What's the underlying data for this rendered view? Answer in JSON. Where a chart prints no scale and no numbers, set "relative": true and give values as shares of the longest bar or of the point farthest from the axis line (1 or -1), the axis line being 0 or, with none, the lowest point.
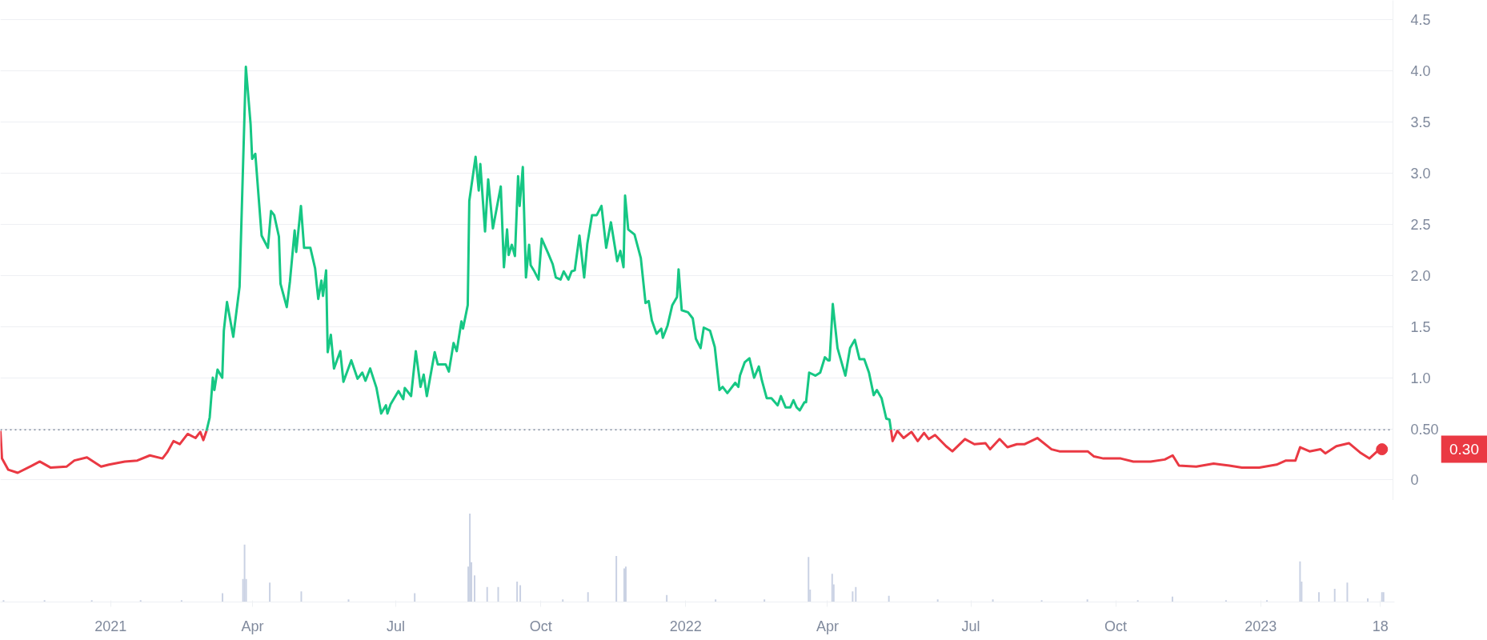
{
  "chart_data": [
    {
      "type": "line",
      "ylim": [
        -0.2,
        4.69
      ],
      "xlim": [
        "2020-10-23",
        "2023-03-27"
      ],
      "yticks": [
        0,
        {
          "value": 0.5,
          "label": "0.50"
        },
        {
          "value": 1,
          "label": "1.0"
        },
        {
          "value": 1.5,
          "label": "1.5"
        },
        {
          "value": 2,
          "label": "2.0"
        },
        {
          "value": 2.5,
          "label": "2.5"
        },
        {
          "value": 3,
          "label": "3.0"
        },
        {
          "value": 3.5,
          "label": "3.5"
        },
        {
          "value": 4,
          "label": "4.0"
        },
        {
          "value": 4.5,
          "label": "4.5"
        }
      ],
      "grid": "y",
      "tick_labels": "y",
      "ref_lines": [
        {
          "axis": "y",
          "value": 0.49,
          "color": "#808a9d",
          "line_style": "dotted"
        }
      ],
      "annotations": [
        "0.30"
      ],
      "series": [
        {
          "color": "#ea3943",
          "x": [
            "2020-10-23",
            "2020-10-24",
            "2020-10-28",
            "2020-11-03",
            "2020-11-12",
            "2020-11-17",
            "2020-11-24",
            "2020-12-04",
            "2020-12-09",
            "2020-12-17",
            "2020-12-26",
            "2020-12-31",
            "2021-01-10",
            "2021-01-18",
            "2021-01-26",
            "2021-02-03",
            "2021-02-06",
            "2021-02-10",
            "2021-02-14",
            "2021-02-19",
            "2021-02-24",
            "2021-02-27",
            "2021-03-01",
            "2021-03-03"
          ],
          "values": [
            0.48,
            0.21,
            0.1,
            0.07,
            0.14,
            0.18,
            0.12,
            0.13,
            0.19,
            0.22,
            0.13,
            0.15,
            0.18,
            0.19,
            0.24,
            0.21,
            0.27,
            0.38,
            0.35,
            0.45,
            0.41,
            0.47,
            0.39,
            0.48
          ]
        },
        {
          "color": "#16c784",
          "x": [
            "2021-03-03",
            "2021-03-05",
            "2021-03-07",
            "2021-03-08",
            "2021-03-10",
            "2021-03-13",
            "2021-03-14",
            "2021-03-16",
            "2021-03-20",
            "2021-03-24",
            "2021-03-28",
            "2021-03-31",
            "2021-04-01",
            "2021-04-03",
            "2021-04-07",
            "2021-04-11",
            "2021-04-13",
            "2021-04-15",
            "2021-04-18",
            "2021-04-19",
            "2021-04-23",
            "2021-04-25",
            "2021-04-28",
            "2021-04-29",
            "2021-05-02",
            "2021-05-04",
            "2021-05-08",
            "2021-05-11",
            "2021-05-13",
            "2021-05-15",
            "2021-05-16",
            "2021-05-18",
            "2021-05-19",
            "2021-05-21",
            "2021-05-23",
            "2021-05-27",
            "2021-05-29",
            "2021-06-03",
            "2021-06-07",
            "2021-06-10",
            "2021-06-12",
            "2021-06-15",
            "2021-06-19",
            "2021-06-22",
            "2021-06-25",
            "2021-06-26",
            "2021-06-28",
            "2021-07-03",
            "2021-07-06",
            "2021-07-07",
            "2021-07-11",
            "2021-07-14",
            "2021-07-17",
            "2021-07-19",
            "2021-07-21",
            "2021-07-26",
            "2021-07-28",
            "2021-08-02",
            "2021-08-04",
            "2021-08-07",
            "2021-08-09",
            "2021-08-12",
            "2021-08-13",
            "2021-08-16",
            "2021-08-17",
            "2021-08-21",
            "2021-08-23",
            "2021-08-24",
            "2021-08-27",
            "2021-08-29",
            "2021-09-01",
            "2021-09-06",
            "2021-09-08",
            "2021-09-10",
            "2021-09-11",
            "2021-09-13",
            "2021-09-15",
            "2021-09-17",
            "2021-09-18",
            "2021-09-20",
            "2021-09-22",
            "2021-09-24",
            "2021-09-25",
            "2021-09-27",
            "2021-09-30",
            "2021-10-02",
            "2021-10-06",
            "2021-10-09",
            "2021-10-11",
            "2021-10-14",
            "2021-10-16",
            "2021-10-19",
            "2021-10-21",
            "2021-10-23",
            "2021-10-26",
            "2021-10-29",
            "2021-10-31",
            "2021-11-03",
            "2021-11-06",
            "2021-11-09",
            "2021-11-12",
            "2021-11-15",
            "2021-11-19",
            "2021-11-21",
            "2021-11-23",
            "2021-11-24",
            "2021-11-26",
            "2021-11-30",
            "2021-12-04",
            "2021-12-07",
            "2021-12-09",
            "2021-12-11",
            "2021-12-14",
            "2021-12-17",
            "2021-12-18",
            "2021-12-21",
            "2021-12-24",
            "2021-12-27",
            "2021-12-28",
            "2021-12-30",
            "2022-01-03",
            "2022-01-06",
            "2022-01-08",
            "2022-01-11",
            "2022-01-13",
            "2022-01-17",
            "2022-01-20",
            "2022-01-23",
            "2022-01-25",
            "2022-01-28",
            "2022-02-02",
            "2022-02-04",
            "2022-02-05",
            "2022-02-08",
            "2022-02-11",
            "2022-02-14",
            "2022-02-17",
            "2022-02-19",
            "2022-02-22",
            "2022-02-25",
            "2022-03-01",
            "2022-03-03",
            "2022-03-06",
            "2022-03-09",
            "2022-03-11",
            "2022-03-13",
            "2022-03-15",
            "2022-03-18",
            "2022-03-19",
            "2022-03-21",
            "2022-03-25",
            "2022-03-28",
            "2022-03-31",
            "2022-04-02",
            "2022-04-03",
            "2022-04-05",
            "2022-04-08",
            "2022-04-13",
            "2022-04-16",
            "2022-04-19",
            "2022-04-22",
            "2022-04-25",
            "2022-04-28",
            "2022-05-01",
            "2022-05-03",
            "2022-05-06",
            "2022-05-09",
            "2022-05-11",
            "2022-05-12"
          ],
          "values": [
            0.48,
            0.61,
            1.0,
            0.88,
            1.08,
            1.0,
            1.46,
            1.74,
            1.4,
            1.89,
            4.04,
            3.48,
            3.14,
            3.19,
            2.39,
            2.27,
            2.63,
            2.59,
            2.38,
            1.92,
            1.69,
            1.94,
            2.44,
            2.23,
            2.68,
            2.27,
            2.27,
            2.07,
            1.77,
            1.95,
            1.8,
            2.05,
            1.25,
            1.42,
            1.09,
            1.26,
            0.96,
            1.17,
            0.99,
            1.05,
            0.97,
            1.09,
            0.9,
            0.65,
            0.73,
            0.65,
            0.74,
            0.87,
            0.79,
            0.9,
            0.82,
            1.26,
            0.91,
            1.03,
            0.82,
            1.25,
            1.13,
            1.13,
            1.06,
            1.34,
            1.26,
            1.55,
            1.48,
            1.71,
            2.73,
            3.16,
            2.83,
            3.09,
            2.43,
            2.94,
            2.46,
            2.87,
            2.08,
            2.45,
            2.2,
            2.3,
            2.19,
            2.97,
            2.68,
            3.06,
            1.98,
            2.3,
            2.1,
            2.05,
            1.96,
            2.36,
            2.22,
            2.11,
            1.98,
            1.96,
            2.04,
            1.96,
            2.04,
            2.05,
            2.39,
            1.98,
            2.31,
            2.59,
            2.59,
            2.68,
            2.27,
            2.52,
            2.14,
            2.24,
            2.08,
            2.78,
            2.45,
            2.4,
            2.17,
            1.73,
            1.75,
            1.56,
            1.43,
            1.48,
            1.39,
            1.51,
            1.71,
            1.79,
            2.06,
            1.66,
            1.64,
            1.58,
            1.38,
            1.29,
            1.49,
            1.46,
            1.3,
            0.88,
            0.91,
            0.85,
            0.95,
            0.91,
            1.02,
            1.15,
            1.19,
            1.0,
            1.11,
            0.97,
            0.8,
            0.8,
            0.73,
            0.82,
            0.71,
            0.71,
            0.78,
            0.71,
            0.68,
            0.76,
            0.76,
            1.05,
            1.02,
            1.05,
            1.2,
            1.17,
            1.17,
            1.72,
            1.29,
            1.02,
            1.29,
            1.37,
            1.18,
            1.18,
            1.05,
            0.83,
            0.88,
            0.8,
            0.6,
            0.59,
            0.49
          ]
        },
        {
          "color": "#ea3943",
          "x": [
            "2022-05-12",
            "2022-05-13",
            "2022-05-16",
            "2022-05-20",
            "2022-05-25",
            "2022-05-29",
            "2022-06-02",
            "2022-06-05",
            "2022-06-09",
            "2022-06-16",
            "2022-06-20",
            "2022-06-28",
            "2022-07-04",
            "2022-07-11",
            "2022-07-14",
            "2022-07-20",
            "2022-07-25",
            "2022-07-31",
            "2022-08-05",
            "2022-08-13",
            "2022-08-22",
            "2022-08-27",
            "2022-09-08",
            "2022-09-14",
            "2022-09-18",
            "2022-09-24",
            "2022-10-05",
            "2022-10-13",
            "2022-10-24",
            "2022-11-02",
            "2022-11-07",
            "2022-11-11",
            "2022-11-22",
            "2022-12-03",
            "2022-12-13",
            "2022-12-21",
            "2023-01-01",
            "2023-01-12",
            "2023-01-18",
            "2023-01-24",
            "2023-01-27",
            "2023-02-02",
            "2023-02-09",
            "2023-02-12",
            "2023-02-19",
            "2023-02-27",
            "2023-03-06",
            "2023-03-12",
            "2023-03-17",
            "2023-03-20"
          ],
          "values": [
            0.49,
            0.38,
            0.48,
            0.41,
            0.47,
            0.38,
            0.46,
            0.4,
            0.44,
            0.33,
            0.28,
            0.4,
            0.35,
            0.36,
            0.3,
            0.4,
            0.32,
            0.35,
            0.35,
            0.41,
            0.3,
            0.28,
            0.28,
            0.28,
            0.23,
            0.21,
            0.21,
            0.18,
            0.18,
            0.2,
            0.24,
            0.14,
            0.13,
            0.16,
            0.14,
            0.12,
            0.12,
            0.15,
            0.19,
            0.19,
            0.32,
            0.28,
            0.3,
            0.26,
            0.33,
            0.36,
            0.27,
            0.21,
            0.28,
            0.3
          ]
        }
      ]
    },
    {
      "type": "bar",
      "relative": true,
      "xlim": [
        "2020-10-23",
        "2023-03-27"
      ],
      "tick_labels": "x",
      "color": "#c9d1e3",
      "xticks": [
        {
          "value": "2021-01-01",
          "label": "2021"
        },
        {
          "value": "2021-04-01",
          "label": "Apr"
        },
        {
          "value": "2021-07-01",
          "label": "Jul"
        },
        {
          "value": "2021-10-01",
          "label": "Oct"
        },
        {
          "value": "2022-01-01",
          "label": "2022"
        },
        {
          "value": "2022-04-01",
          "label": "Apr"
        },
        {
          "value": "2022-07-01",
          "label": "Jul"
        },
        {
          "value": "2022-10-01",
          "label": "Oct"
        },
        {
          "value": "2023-01-01",
          "label": "2023"
        },
        {
          "value": "2023-03-18",
          "label": "18"
        }
      ],
      "x": [
        "2020-10-25",
        "2020-11-20",
        "2020-12-20",
        "2021-01-20",
        "2021-02-15",
        "2021-03-13",
        "2021-03-26",
        "2021-03-27",
        "2021-03-28",
        "2021-04-12",
        "2021-05-02",
        "2021-06-01",
        "2021-07-13",
        "2021-08-16",
        "2021-08-17",
        "2021-08-18",
        "2021-08-20",
        "2021-08-28",
        "2021-09-04",
        "2021-09-16",
        "2021-09-18",
        "2021-10-15",
        "2021-10-31",
        "2021-11-18",
        "2021-11-23",
        "2021-11-24",
        "2021-12-20",
        "2022-01-20",
        "2022-02-20",
        "2022-03-20",
        "2022-03-21",
        "2022-04-04",
        "2022-04-05",
        "2022-04-17",
        "2022-04-19",
        "2022-05-10",
        "2022-06-10",
        "2022-07-15",
        "2022-08-15",
        "2022-09-13",
        "2022-10-15",
        "2022-11-06",
        "2022-12-10",
        "2023-01-05",
        "2023-01-26",
        "2023-01-27",
        "2023-02-07",
        "2023-02-17",
        "2023-02-25",
        "2023-03-10",
        "2023-03-19",
        "2023-03-20"
      ],
      "values": [
        0.02,
        0.02,
        0.02,
        0.02,
        0.02,
        0.1,
        0.26,
        0.65,
        0.26,
        0.22,
        0.12,
        0.03,
        0.1,
        0.4,
        1.0,
        0.45,
        0.3,
        0.17,
        0.17,
        0.23,
        0.19,
        0.03,
        0.11,
        0.52,
        0.38,
        0.4,
        0.08,
        0.03,
        0.03,
        0.51,
        0.14,
        0.32,
        0.2,
        0.12,
        0.17,
        0.07,
        0.03,
        0.03,
        0.02,
        0.03,
        0.02,
        0.06,
        0.02,
        0.02,
        0.46,
        0.23,
        0.11,
        0.15,
        0.22,
        0.04,
        0.11,
        0.11
      ]
    }
  ]
}
